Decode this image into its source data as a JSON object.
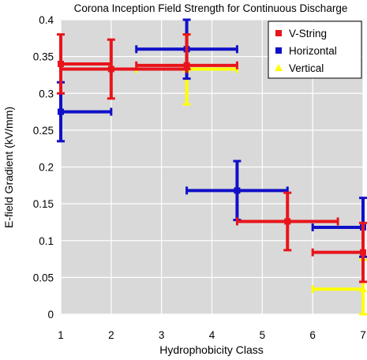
{
  "chart_data": {
    "type": "scatter",
    "title": "Corona Inception Field Strength for Continuous Discharge",
    "xlabel": "Hydrophobicity Class",
    "ylabel": "E-field Gradient (kV/mm)",
    "xlim": [
      1,
      7
    ],
    "ylim": [
      0,
      0.4
    ],
    "x_ticks": [
      "1",
      "2",
      "3",
      "4",
      "5",
      "6",
      "7"
    ],
    "y_ticks": [
      "0",
      "0.05",
      "0.1",
      "0.15",
      "0.2",
      "0.25",
      "0.3",
      "0.35",
      "0.4"
    ],
    "grid": true,
    "legend_position": "top-right",
    "series": [
      {
        "name": "V-String",
        "color": "#e8141b",
        "marker": "square",
        "points": [
          {
            "x": 1,
            "y": 0.34,
            "xmin": 1,
            "xmax": 2,
            "ymin": 0.3,
            "ymax": 0.38
          },
          {
            "x": 2,
            "y": 0.333,
            "xmin": 1,
            "xmax": 3.5,
            "ymin": 0.293,
            "ymax": 0.373
          },
          {
            "x": 3.5,
            "y": 0.338,
            "xmin": 2.5,
            "xmax": 4.5,
            "ymin": 0.333,
            "ymax": 0.38
          },
          {
            "x": 5.5,
            "y": 0.126,
            "xmin": 4.5,
            "xmax": 6.5,
            "ymin": 0.087,
            "ymax": 0.165
          },
          {
            "x": 7,
            "y": 0.084,
            "xmin": 6,
            "xmax": 7,
            "ymin": 0.044,
            "ymax": 0.124
          }
        ]
      },
      {
        "name": "Horizontal",
        "color": "#1010c8",
        "marker": "square",
        "points": [
          {
            "x": 1,
            "y": 0.275,
            "xmin": 1,
            "xmax": 2,
            "ymin": 0.235,
            "ymax": 0.315
          },
          {
            "x": 3.5,
            "y": 0.36,
            "xmin": 2.5,
            "xmax": 4.5,
            "ymin": 0.32,
            "ymax": 0.4
          },
          {
            "x": 4.5,
            "y": 0.168,
            "xmin": 3.5,
            "xmax": 5.5,
            "ymin": 0.128,
            "ymax": 0.208
          },
          {
            "x": 7,
            "y": 0.118,
            "xmin": 6,
            "xmax": 7,
            "ymin": 0.078,
            "ymax": 0.158
          }
        ]
      },
      {
        "name": "Vertical",
        "color": "#ffff00",
        "marker": "triangle",
        "points": [
          {
            "x": 3.5,
            "y": 0.333,
            "xmin": 2.5,
            "xmax": 4.5,
            "ymin": 0.285,
            "ymax": 0.38
          },
          {
            "x": 7,
            "y": 0.034,
            "xmin": 6,
            "xmax": 7,
            "ymin": 0,
            "ymax": 0.074
          }
        ]
      }
    ]
  }
}
